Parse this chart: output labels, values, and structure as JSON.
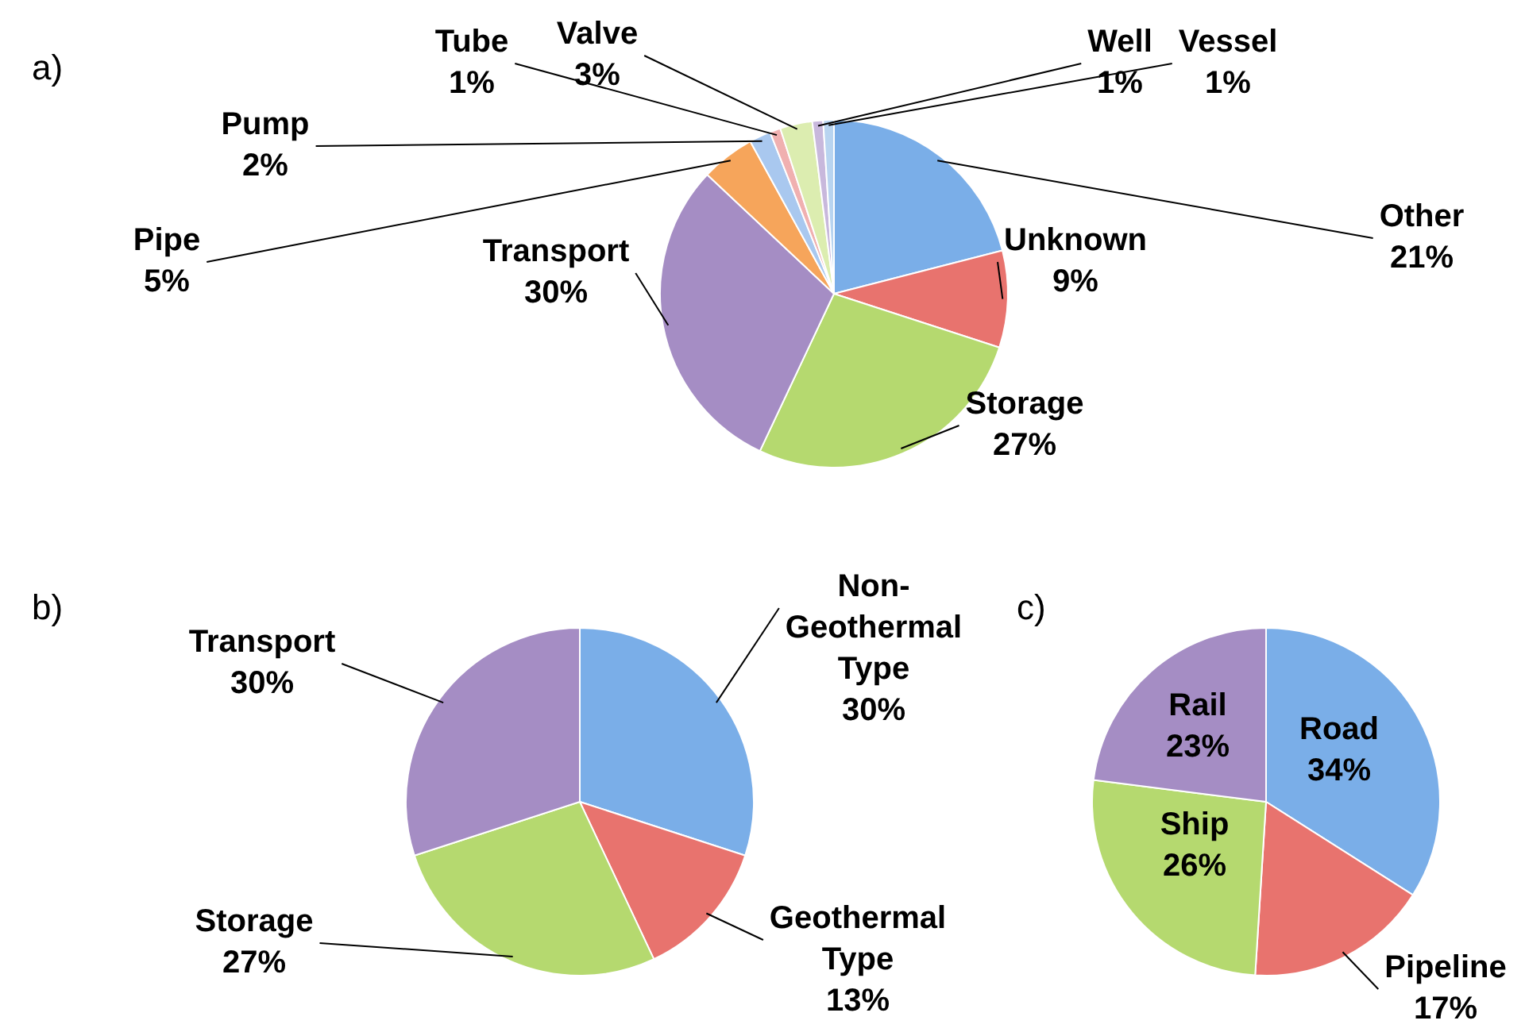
{
  "chart_data": [
    {
      "type": "pie",
      "title": "a)",
      "categories": [
        "Other",
        "Unknown",
        "Storage",
        "Transport",
        "Pipe",
        "Pump",
        "Tube",
        "Valve",
        "Well",
        "Vessel"
      ],
      "values": [
        21,
        9,
        27,
        30,
        5,
        2,
        1,
        3,
        1,
        1
      ],
      "value_labels": [
        "21%",
        "9%",
        "27%",
        "30%",
        "5%",
        "2%",
        "1%",
        "3%",
        "1%",
        "1%"
      ],
      "colors": [
        "#7aaee8",
        "#e8736e",
        "#b5d96f",
        "#a58dc4",
        "#f6a55b",
        "#a9c8ef",
        "#f0b0b0",
        "#dcedb0",
        "#c8b8dc",
        "#b8d4f0"
      ]
    },
    {
      "type": "pie",
      "title": "b)",
      "categories": [
        "Non-Geothermal Type",
        "Geothermal Type",
        "Storage",
        "Transport"
      ],
      "values": [
        30,
        13,
        27,
        30
      ],
      "value_labels": [
        "30%",
        "13%",
        "27%",
        "30%"
      ],
      "colors": [
        "#7aaee8",
        "#e8736e",
        "#b5d96f",
        "#a58dc4"
      ]
    },
    {
      "type": "pie",
      "title": "c)",
      "categories": [
        "Road",
        "Pipeline",
        "Ship",
        "Rail"
      ],
      "values": [
        34,
        17,
        26,
        23
      ],
      "value_labels": [
        "34%",
        "17%",
        "26%",
        "23%"
      ],
      "colors": [
        "#7aaee8",
        "#e8736e",
        "#b5d96f",
        "#a58dc4"
      ]
    }
  ]
}
